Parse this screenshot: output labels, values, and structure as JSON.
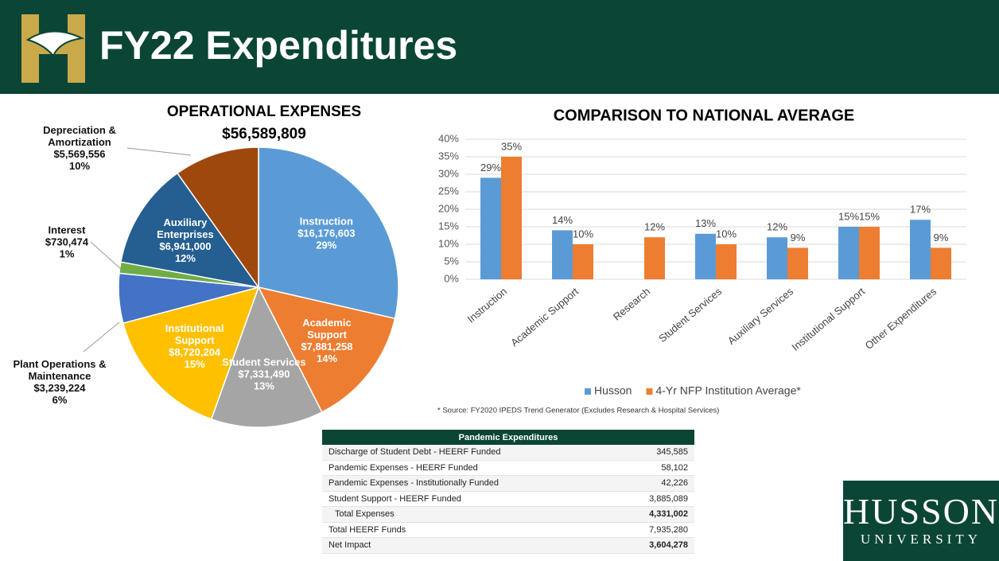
{
  "header": {
    "title": "FY22 Expenditures"
  },
  "chart_data": [
    {
      "type": "pie",
      "title": "OPERATIONAL EXPENSES",
      "subtitle": "$56,589,809",
      "categories": [
        "Instruction",
        "Academic Support",
        "Student Services",
        "Institutional Support",
        "Plant Operations & Maintenance",
        "Interest",
        "Auxiliary Enterprises",
        "Depreciation & Amortization"
      ],
      "values": [
        16176603,
        7881258,
        7331490,
        8720204,
        3239224,
        730474,
        6941000,
        5569556
      ],
      "value_labels": [
        "$16,176,603",
        "$7,881,258",
        "$7,331,490",
        "$8,720,204",
        "$3,239,224",
        "$730,474",
        "$6,941,000",
        "$5,569,556"
      ],
      "percents": [
        29,
        14,
        13,
        15,
        6,
        1,
        12,
        10
      ],
      "percent_labels": [
        "29%",
        "14%",
        "13%",
        "15%",
        "6%",
        "1%",
        "12%",
        "10%"
      ],
      "colors": [
        "#5b9bd5",
        "#ed7d31",
        "#a5a5a5",
        "#ffc000",
        "#4472c4",
        "#70ad47",
        "#255e91",
        "#9e480e"
      ]
    },
    {
      "type": "bar",
      "title": "COMPARISON TO NATIONAL AVERAGE",
      "categories": [
        "Instruction",
        "Academic Support",
        "Research",
        "Student Services",
        "Auxiliary Services",
        "Institutional Support",
        "Other Expenditures"
      ],
      "series": [
        {
          "name": "Husson",
          "color": "#5b9bd5",
          "values": [
            29,
            14,
            null,
            13,
            12,
            15,
            17
          ],
          "value_labels": [
            "29%",
            "14%",
            null,
            "13%",
            "12%",
            "15%",
            "17%"
          ]
        },
        {
          "name": "4-Yr NFP Institution Average*",
          "color": "#ed7d31",
          "values": [
            35,
            10,
            12,
            10,
            9,
            15,
            9
          ],
          "value_labels": [
            "35%",
            "10%",
            "12%",
            "10%",
            "9%",
            "15%",
            "9%"
          ]
        }
      ],
      "ylim": [
        0,
        40
      ],
      "yticks": [
        {
          "value": 0,
          "label": "0%"
        },
        {
          "value": 5,
          "label": "5%"
        },
        {
          "value": 10,
          "label": "10%"
        },
        {
          "value": 15,
          "label": "15%"
        },
        {
          "value": 20,
          "label": "20%"
        },
        {
          "value": 25,
          "label": "25%"
        },
        {
          "value": 30,
          "label": "30%"
        },
        {
          "value": 35,
          "label": "35%"
        },
        {
          "value": 40,
          "label": "40%"
        }
      ],
      "grid": true,
      "legend": "bottom",
      "note": "* Source: FY2020 IPEDS  Trend Generator (Excludes Research & Hospital Services)"
    }
  ],
  "table": {
    "title": "Pandemic Expenditures",
    "rows": [
      [
        "Discharge of Student Debt - HEERF Funded",
        "345,585"
      ],
      [
        "Pandemic Expenses - HEERF Funded",
        "58,102"
      ],
      [
        "Pandemic Expenses - Institutionally  Funded",
        "42,226"
      ],
      [
        "Student Support - HEERF Funded",
        "3,885,089"
      ],
      [
        "Total Expenses",
        "4,331,002"
      ],
      [
        "Total HEERF Funds",
        "7,935,280"
      ],
      [
        "Net Impact",
        "3,604,278"
      ]
    ]
  },
  "logo": {
    "name": "HUSSON",
    "subtitle": "UNIVERSITY"
  }
}
